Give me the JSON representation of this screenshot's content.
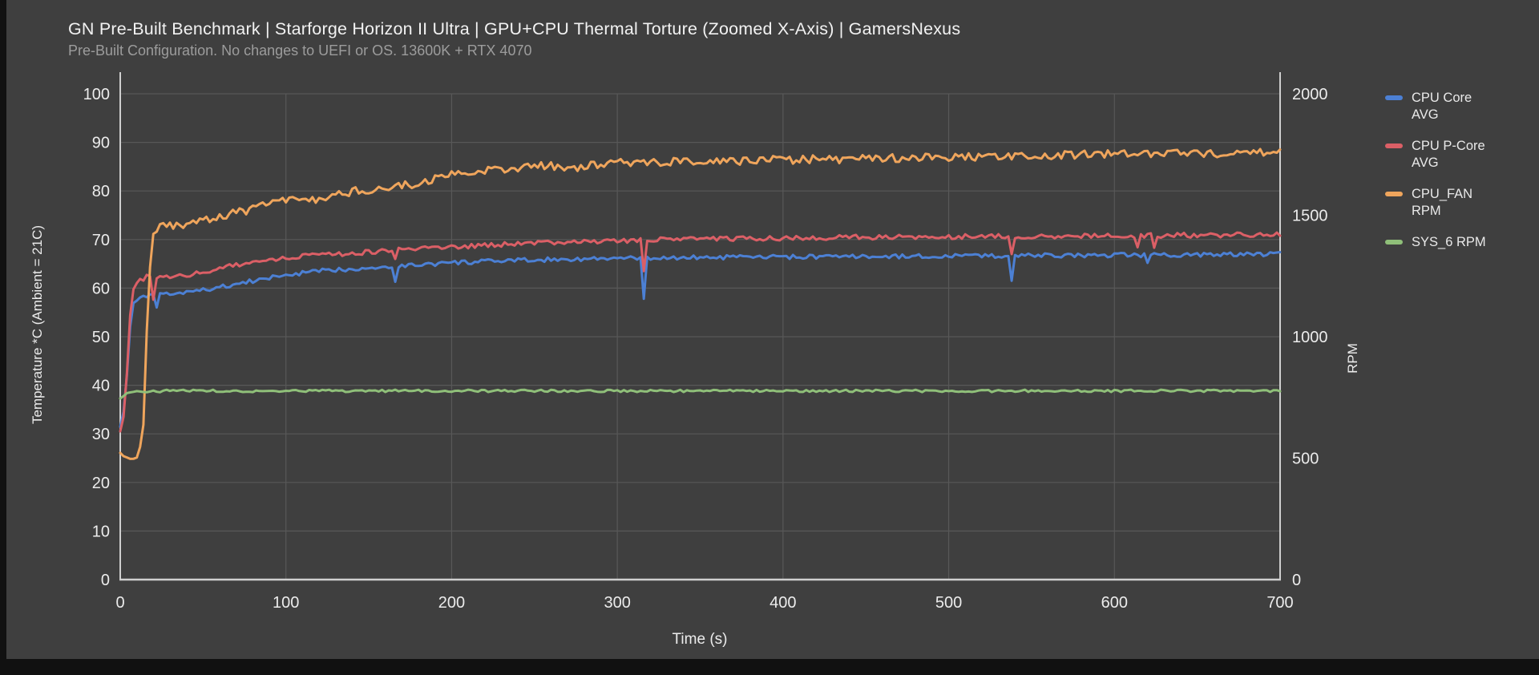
{
  "window": {
    "bg": "#3f3f3f",
    "edge_bar_color": "#111111"
  },
  "chart_data": {
    "type": "line",
    "title": "GN Pre-Built Benchmark | Starforge Horizon II Ultra | GPU+CPU Thermal Torture (Zoomed X-Axis) | GamersNexus",
    "subtitle": "Pre-Built Configuration. No changes to UEFI or OS. 13600K + RTX 4070",
    "xlabel": "Time (s)",
    "ylabel_left": "Temperature *C (Ambient = 21C)",
    "ylabel_right": "RPM",
    "grid": true,
    "legend_position": "right",
    "grid_color": "#585858",
    "axis_line_color": "#cfcfcf",
    "tick_label_color": "#ececec",
    "title_color": "#f2f2f2",
    "subtitle_color": "#9c9c9c",
    "x_axis": {
      "min": 0,
      "max": 700,
      "ticks": [
        0,
        100,
        200,
        300,
        400,
        500,
        600,
        700
      ]
    },
    "y_axis_left": {
      "min": 0,
      "max": 100,
      "ticks": [
        0,
        10,
        20,
        30,
        40,
        50,
        60,
        70,
        80,
        90,
        100
      ]
    },
    "y_axis_right": {
      "min": 0,
      "max": 2000,
      "ticks": [
        0,
        500,
        1000,
        1500,
        2000
      ]
    },
    "series": [
      {
        "name": "CPU Core AVG",
        "legend_label": "CPU Core\nAVG",
        "axis": "left",
        "unit": "C",
        "color": "#4c80d4",
        "noise": 0.45,
        "flat_until": 8,
        "keypoints": [
          [
            0,
            31.5
          ],
          [
            3,
            36
          ],
          [
            5,
            48
          ],
          [
            7,
            56
          ],
          [
            9,
            57.8
          ],
          [
            14,
            58.1
          ],
          [
            25,
            58.6
          ],
          [
            35,
            58.9
          ],
          [
            50,
            59.6
          ],
          [
            70,
            60.8
          ],
          [
            85,
            61.8
          ],
          [
            100,
            62.7
          ],
          [
            120,
            63.5
          ],
          [
            140,
            64.0
          ],
          [
            160,
            64.4
          ],
          [
            180,
            64.8
          ],
          [
            200,
            65.2
          ],
          [
            230,
            65.6
          ],
          [
            260,
            65.9
          ],
          [
            300,
            66.1
          ],
          [
            350,
            66.3
          ],
          [
            400,
            66.4
          ],
          [
            450,
            66.5
          ],
          [
            500,
            66.6
          ],
          [
            550,
            66.7
          ],
          [
            600,
            66.8
          ],
          [
            650,
            66.9
          ],
          [
            700,
            67.0
          ]
        ],
        "spikes": [
          [
            22,
            56.0
          ],
          [
            166,
            61.3
          ],
          [
            316,
            57.8
          ],
          [
            538,
            61.5
          ],
          [
            620,
            65.2
          ]
        ]
      },
      {
        "name": "CPU P-Core AVG",
        "legend_label": "CPU P-Core\nAVG",
        "axis": "left",
        "unit": "C",
        "color": "#db5f66",
        "noise": 0.5,
        "flat_until": 8,
        "keypoints": [
          [
            0,
            30.5
          ],
          [
            3,
            35
          ],
          [
            5,
            50
          ],
          [
            7,
            59
          ],
          [
            9,
            61
          ],
          [
            13,
            61.7
          ],
          [
            16,
            62.3
          ],
          [
            19,
            61.8
          ],
          [
            25,
            62.0
          ],
          [
            35,
            62.4
          ],
          [
            50,
            63.3
          ],
          [
            70,
            64.8
          ],
          [
            85,
            65.8
          ],
          [
            100,
            66.3
          ],
          [
            120,
            66.8
          ],
          [
            140,
            67.2
          ],
          [
            160,
            67.7
          ],
          [
            180,
            68.1
          ],
          [
            200,
            68.5
          ],
          [
            230,
            69.0
          ],
          [
            260,
            69.4
          ],
          [
            300,
            69.8
          ],
          [
            350,
            70.1
          ],
          [
            400,
            70.3
          ],
          [
            450,
            70.5
          ],
          [
            500,
            70.6
          ],
          [
            550,
            70.7
          ],
          [
            600,
            70.8
          ],
          [
            650,
            70.9
          ],
          [
            700,
            71.0
          ]
        ],
        "spikes": [
          [
            20,
            57.6
          ],
          [
            166,
            66.0
          ],
          [
            316,
            63.5
          ],
          [
            538,
            67.0
          ],
          [
            614,
            68.4
          ],
          [
            624,
            68.3
          ]
        ]
      },
      {
        "name": "CPU_FAN RPM",
        "legend_label": "CPU_FAN\nRPM",
        "axis": "right",
        "unit": "RPM",
        "color": "#efa55c",
        "noise": 17,
        "flat_until": 22,
        "keypoints": [
          [
            0,
            520
          ],
          [
            3,
            500
          ],
          [
            11,
            500
          ],
          [
            14,
            640
          ],
          [
            17,
            1220
          ],
          [
            20,
            1420
          ],
          [
            23,
            1450
          ],
          [
            30,
            1456
          ],
          [
            40,
            1460
          ],
          [
            48,
            1472
          ],
          [
            55,
            1490
          ],
          [
            65,
            1505
          ],
          [
            80,
            1525
          ],
          [
            95,
            1555
          ],
          [
            110,
            1575
          ],
          [
            122,
            1565
          ],
          [
            128,
            1580
          ],
          [
            140,
            1598
          ],
          [
            160,
            1612
          ],
          [
            180,
            1632
          ],
          [
            190,
            1650
          ],
          [
            200,
            1668
          ],
          [
            215,
            1678
          ],
          [
            230,
            1692
          ],
          [
            245,
            1700
          ],
          [
            258,
            1706
          ],
          [
            270,
            1692
          ],
          [
            282,
            1706
          ],
          [
            300,
            1715
          ],
          [
            330,
            1718
          ],
          [
            370,
            1724
          ],
          [
            400,
            1728
          ],
          [
            440,
            1732
          ],
          [
            480,
            1736
          ],
          [
            520,
            1743
          ],
          [
            560,
            1747
          ],
          [
            600,
            1753
          ],
          [
            640,
            1752
          ],
          [
            670,
            1756
          ],
          [
            700,
            1758
          ]
        ],
        "spikes": []
      },
      {
        "name": "SYS_6 RPM",
        "legend_label": "SYS_6 RPM",
        "axis": "right",
        "unit": "RPM",
        "color": "#8fbf79",
        "noise": 5,
        "flat_until": 4,
        "keypoints": [
          [
            0,
            745
          ],
          [
            4,
            766
          ],
          [
            10,
            773
          ],
          [
            30,
            777
          ],
          [
            700,
            777
          ]
        ],
        "spikes": []
      }
    ]
  }
}
